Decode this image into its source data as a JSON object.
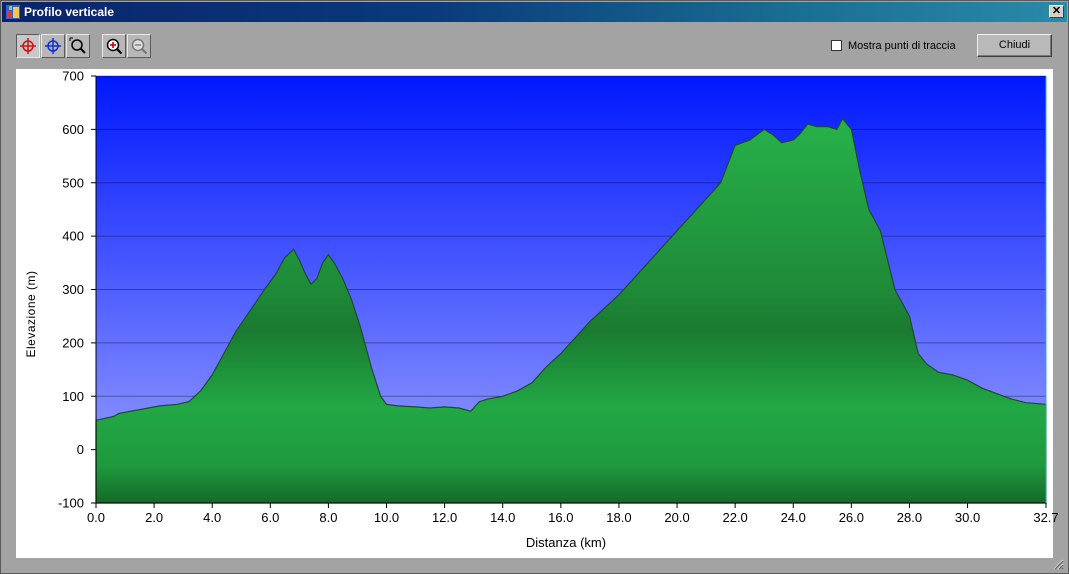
{
  "window": {
    "title": "Profilo verticale"
  },
  "toolbar": {
    "buttons": [
      {
        "icon": "crosshair-red-icon",
        "active": true
      },
      {
        "icon": "crosshair-blue-icon",
        "active": false
      },
      {
        "icon": "zoom-region-icon",
        "active": false
      },
      {
        "icon": "zoom-in-icon",
        "active": false
      },
      {
        "icon": "zoom-out-icon",
        "active": false
      }
    ],
    "show_track_points_label": "Mostra punti di traccia",
    "show_track_points_checked": false,
    "close_label": "Chiudi"
  },
  "colors": {
    "sky_top": "#0018ff",
    "sky_bottom": "#9fa6ff",
    "terrain_light": "#27b24a",
    "terrain_dark": "#1a6e2c",
    "outline": "#1d4d24"
  },
  "chart_data": {
    "type": "area",
    "title": "",
    "xlabel": "Distanza    (km)",
    "ylabel": "Elevazione (m)",
    "xlim": [
      0,
      32.7
    ],
    "ylim": [
      -100,
      700
    ],
    "xticks": [
      "0.0",
      "2.0",
      "4.0",
      "6.0",
      "8.0",
      "10.0",
      "12.0",
      "14.0",
      "16.0",
      "18.0",
      "20.0",
      "22.0",
      "24.0",
      "26.0",
      "28.0",
      "30.0",
      "32.7"
    ],
    "xtick_values": [
      0,
      2,
      4,
      6,
      8,
      10,
      12,
      14,
      16,
      18,
      20,
      22,
      24,
      26,
      28,
      30,
      32.7
    ],
    "yticks": [
      "-100",
      "0",
      "100",
      "200",
      "300",
      "400",
      "500",
      "600",
      "700"
    ],
    "ytick_values": [
      -100,
      0,
      100,
      200,
      300,
      400,
      500,
      600,
      700
    ],
    "grid": true,
    "series": [
      {
        "x": [
          0,
          0.6,
          0.8,
          1.5,
          2.2,
          2.8,
          3.2,
          3.6,
          4.0,
          4.4,
          4.8,
          5.3,
          5.8,
          6.2,
          6.5,
          6.8,
          7.0,
          7.2,
          7.4,
          7.6,
          7.8,
          8.0,
          8.2,
          8.5,
          8.8,
          9.1,
          9.5,
          9.8,
          10.0,
          10.4,
          11.0,
          11.5,
          12.0,
          12.5,
          12.9,
          13.2,
          13.5,
          14.0,
          14.5,
          15.0,
          15.5,
          16.0,
          17.0,
          18.0,
          19.0,
          20.0,
          21.0,
          21.5,
          22.0,
          22.5,
          23.0,
          23.3,
          23.6,
          24.0,
          24.2,
          24.5,
          24.8,
          25.2,
          25.5,
          25.7,
          26.0,
          26.3,
          26.6,
          27.0,
          27.5,
          28.0,
          28.3,
          28.6,
          29.0,
          29.5,
          30.0,
          30.5,
          31.0,
          31.5,
          32.0,
          32.7
        ],
        "y": [
          55,
          62,
          68,
          75,
          82,
          85,
          90,
          110,
          140,
          180,
          220,
          260,
          300,
          330,
          360,
          375,
          355,
          330,
          310,
          320,
          350,
          365,
          350,
          320,
          280,
          230,
          150,
          100,
          85,
          82,
          80,
          78,
          80,
          78,
          72,
          90,
          95,
          100,
          110,
          125,
          155,
          180,
          240,
          290,
          350,
          410,
          470,
          500,
          570,
          580,
          600,
          590,
          575,
          580,
          590,
          610,
          605,
          605,
          600,
          620,
          600,
          520,
          450,
          410,
          300,
          250,
          180,
          160,
          145,
          140,
          130,
          115,
          105,
          95,
          88,
          85
        ]
      }
    ]
  }
}
